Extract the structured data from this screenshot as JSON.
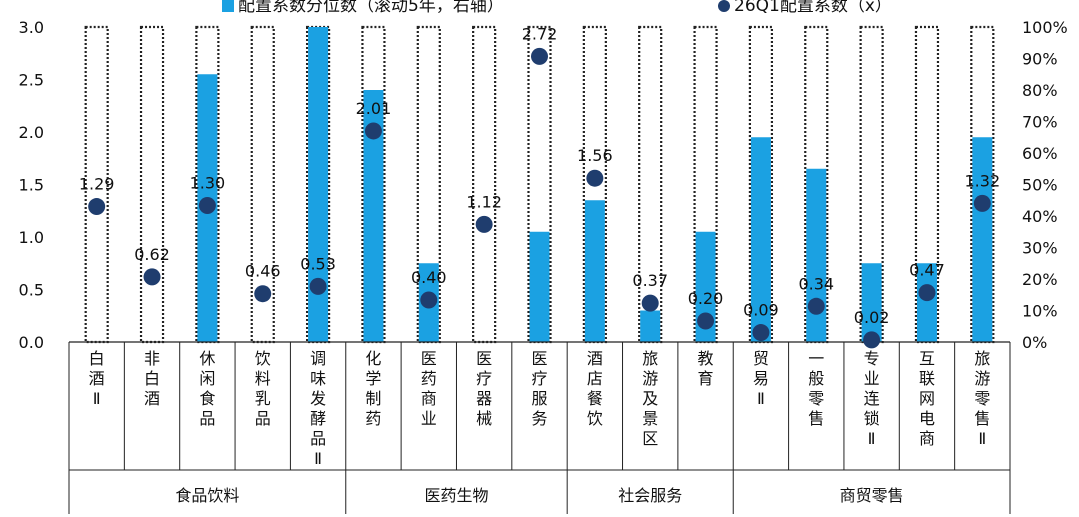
{
  "chart_data": {
    "type": "bar",
    "legend": {
      "bar_label": "配置系数分位数（滚动5年，右轴）",
      "dot_label": "26Q1配置系数（x）"
    },
    "colors": {
      "bar": "#1ba1e2",
      "dot": "#1f3d6e",
      "frame": "#222222"
    },
    "left_axis": {
      "ylim": [
        0,
        3
      ],
      "ticks": [
        "0.0",
        "0.5",
        "1.0",
        "1.5",
        "2.0",
        "2.5",
        "3.0"
      ]
    },
    "right_axis": {
      "ylim": [
        0,
        100
      ],
      "ticks": [
        "0%",
        "10%",
        "20%",
        "30%",
        "40%",
        "50%",
        "60%",
        "70%",
        "80%",
        "90%",
        "100%"
      ]
    },
    "categories": [
      "白酒Ⅱ",
      "非白酒",
      "休闲食品",
      "饮料乳品",
      "调味发酵品Ⅱ",
      "化学制药",
      "医药商业",
      "医疗器械",
      "医疗服务",
      "酒店餐饮",
      "旅游及景区",
      "教育",
      "贸易Ⅱ",
      "一般零售",
      "专业连锁Ⅱ",
      "互联网电商",
      "旅游零售Ⅱ"
    ],
    "series": [
      {
        "name": "配置系数分位数（滚动5年，右轴）",
        "axis": "right",
        "type": "bar",
        "values": [
          0,
          0,
          85,
          0,
          100,
          80,
          25,
          0,
          35,
          45,
          10,
          35,
          65,
          55,
          25,
          25,
          65
        ]
      },
      {
        "name": "26Q1配置系数（x）",
        "axis": "left",
        "type": "scatter",
        "values": [
          1.29,
          0.62,
          1.3,
          0.46,
          0.53,
          2.01,
          0.4,
          1.12,
          2.72,
          1.56,
          0.37,
          0.2,
          0.09,
          0.34,
          0.02,
          0.47,
          1.32
        ],
        "labels": [
          "1.29",
          "0.62",
          "1.30",
          "0.46",
          "0.53",
          "2.01",
          "0.40",
          "1.12",
          "2.72",
          "1.56",
          "0.37",
          "0.20",
          "0.09",
          "0.34",
          "0.02",
          "0.47",
          "1.32"
        ]
      }
    ],
    "groups": [
      {
        "name": "食品饮料",
        "count": 5
      },
      {
        "name": "医药生物",
        "count": 4
      },
      {
        "name": "社会服务",
        "count": 3
      },
      {
        "name": "商贸零售",
        "count": 5
      }
    ]
  }
}
